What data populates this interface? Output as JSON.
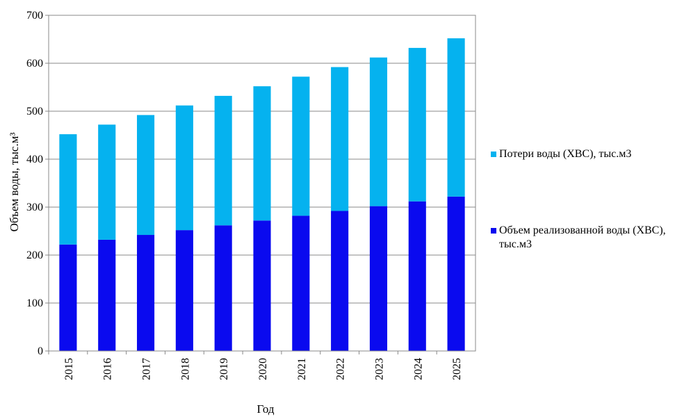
{
  "chart_data": {
    "type": "bar",
    "stacked": true,
    "categories": [
      "2015",
      "2016",
      "2017",
      "2018",
      "2019",
      "2020",
      "2021",
      "2022",
      "2023",
      "2024",
      "2025"
    ],
    "series": [
      {
        "name": "Объем реализованной воды  (ХВС), тыс.м3",
        "color": "#0a0aef",
        "values": [
          222,
          232,
          242,
          252,
          262,
          272,
          282,
          292,
          302,
          312,
          322
        ]
      },
      {
        "name": "Потери воды  (ХВС), тыс.м3",
        "color": "#05b2ef",
        "values": [
          230,
          240,
          250,
          260,
          270,
          280,
          290,
          300,
          310,
          320,
          330
        ]
      }
    ],
    "yticks": [
      "0",
      "100",
      "200",
      "300",
      "400",
      "500",
      "600",
      "700"
    ],
    "ylim": [
      0,
      700
    ],
    "xlabel": "Год",
    "ylabel": "Объем воды, тыс.м³",
    "grid": true,
    "legend_position": "right"
  },
  "legend": [
    {
      "label": "Потери воды  (ХВС), тыс.м3",
      "color": "#05b2ef"
    },
    {
      "label": "Объем реализованной воды  (ХВС), тыс.м3",
      "color": "#0a0aef"
    }
  ]
}
